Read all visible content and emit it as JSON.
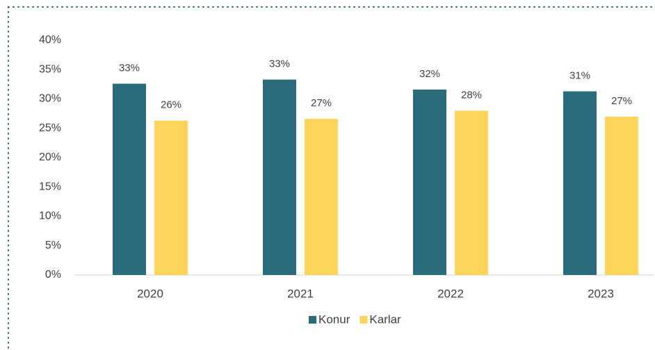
{
  "chart_data": {
    "type": "bar",
    "categories": [
      "2020",
      "2021",
      "2022",
      "2023"
    ],
    "series": [
      {
        "name": "Konur",
        "color": "#2a6b7c",
        "values": [
          32.6,
          33.3,
          31.6,
          31.3
        ],
        "value_labels": [
          "33%",
          "33%",
          "32%",
          "31%"
        ]
      },
      {
        "name": "Karlar",
        "color": "#fdd55c",
        "values": [
          26.3,
          26.6,
          28.0,
          27.0
        ],
        "value_labels": [
          "26%",
          "27%",
          "28%",
          "27%"
        ]
      }
    ],
    "ylim": [
      0,
      40
    ],
    "yticks": [
      {
        "value": 0,
        "label": "0%"
      },
      {
        "value": 5,
        "label": "5%"
      },
      {
        "value": 10,
        "label": "10%"
      },
      {
        "value": 15,
        "label": "15%"
      },
      {
        "value": 20,
        "label": "20%"
      },
      {
        "value": 25,
        "label": "25%"
      },
      {
        "value": 30,
        "label": "30%"
      },
      {
        "value": 35,
        "label": "35%"
      },
      {
        "value": 40,
        "label": "40%"
      }
    ],
    "grid": false,
    "legend": "bottom"
  }
}
